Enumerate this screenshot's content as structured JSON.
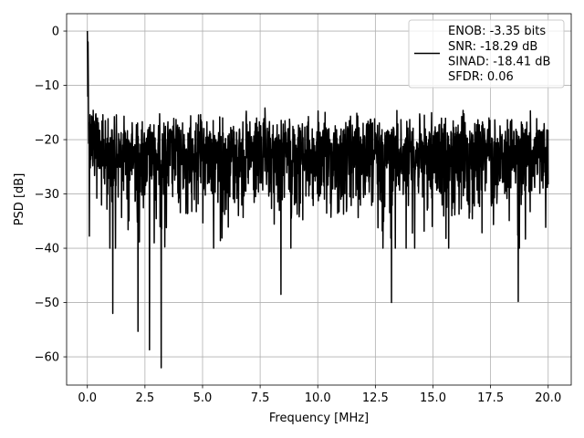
{
  "chart_data": {
    "type": "line",
    "xlabel": "Frequency [MHz]",
    "ylabel": "PSD [dB]",
    "xlim": [
      -0.9,
      21.0
    ],
    "ylim": [
      -65.2,
      3.2
    ],
    "xticks": [
      0.0,
      2.5,
      5.0,
      7.5,
      10.0,
      12.5,
      15.0,
      17.5,
      20.0
    ],
    "xtick_labels": [
      "0.0",
      "2.5",
      "5.0",
      "7.5",
      "10.0",
      "12.5",
      "15.0",
      "17.5",
      "20.0"
    ],
    "yticks": [
      0,
      -10,
      -20,
      -30,
      -40,
      -50,
      -60
    ],
    "ytick_labels": [
      "0",
      "−10",
      "−20",
      "−30",
      "−40",
      "−50",
      "−60"
    ],
    "grid": true,
    "legend_position": "top-right",
    "legend_lines": [
      "ENOB: -3.35 bits",
      "SNR: -18.29 dB",
      "SINAD: -18.41 dB",
      "SFDR: 0.06"
    ],
    "series": [
      {
        "color": "#000000",
        "x_start": 0.0,
        "x_end": 20.0,
        "n_points": 2048,
        "values_summary": "noise-like PSD fluctuating between about -10 dB and -35 dB across the band",
        "peak": {
          "x": 0.0,
          "y": 0.0
        },
        "notable_minima": [
          {
            "x": 1.1,
            "y": -52
          },
          {
            "x": 2.2,
            "y": -55.3
          },
          {
            "x": 2.7,
            "y": -58.7
          },
          {
            "x": 3.2,
            "y": -62
          },
          {
            "x": 8.4,
            "y": -48.5
          },
          {
            "x": 13.2,
            "y": -50
          },
          {
            "x": 18.7,
            "y": -49.8
          }
        ]
      }
    ]
  }
}
